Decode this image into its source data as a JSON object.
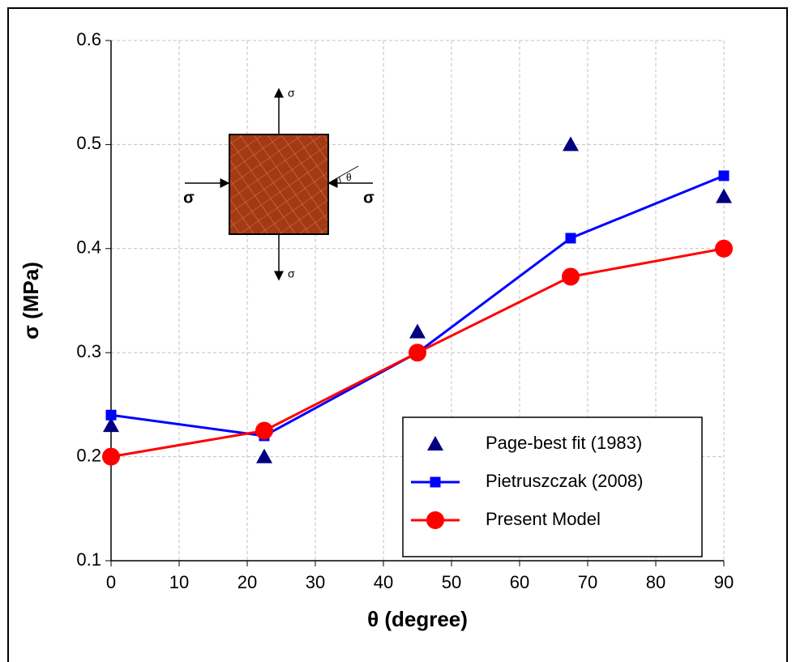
{
  "chart_data": {
    "type": "line",
    "xlabel": "θ (degree)",
    "ylabel": "σ (MPa)",
    "x": [
      0,
      22.5,
      45,
      67.5,
      90
    ],
    "series": [
      {
        "name": "Page-best fit (1983)",
        "color": "#000080",
        "marker": "triangle",
        "line": false,
        "values": [
          0.23,
          0.2,
          0.32,
          0.5,
          0.45
        ]
      },
      {
        "name": "Pietruszczak (2008)",
        "color": "#0000ff",
        "marker": "square",
        "line": true,
        "values": [
          0.24,
          0.22,
          0.3,
          0.41,
          0.47
        ]
      },
      {
        "name": "Present Model",
        "color": "#ff0000",
        "marker": "circle",
        "line": true,
        "values": [
          0.2,
          0.225,
          0.3,
          0.373,
          0.4
        ]
      }
    ],
    "xlim": [
      0,
      90
    ],
    "xticks": [
      0,
      10,
      20,
      30,
      40,
      50,
      60,
      70,
      80,
      90
    ],
    "ylim": [
      0.1,
      0.6
    ],
    "yticks": [
      0.1,
      0.2,
      0.3,
      0.4,
      0.5,
      0.6
    ],
    "grid": true,
    "legend": "lower right",
    "inset": {
      "sigma_top": "σ",
      "sigma_bottom": "σ",
      "sigma_left": "σ",
      "sigma_right": "σ",
      "theta": "θ"
    }
  }
}
